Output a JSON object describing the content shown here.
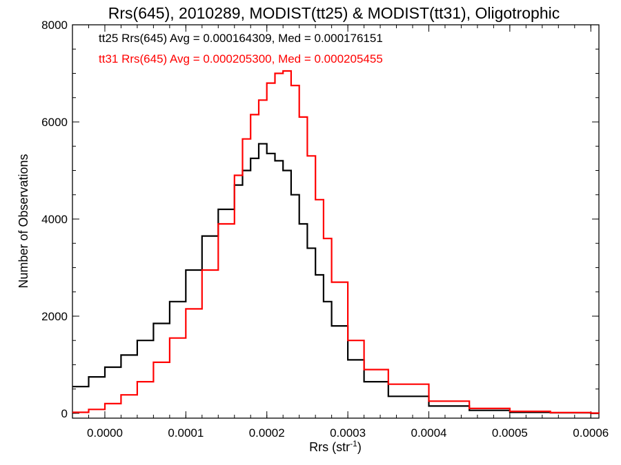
{
  "chart_data": {
    "type": "line",
    "title": "Rrs(645), 2010289, MODIST(tt25) & MODIST(tt31), Oligotrophic",
    "xlabel_main": "Rrs (str",
    "xlabel_sup": "-1",
    "xlabel_end": ")",
    "ylabel": "Number of Observations",
    "xlim": [
      -4e-05,
      0.00061
    ],
    "ylim": [
      -100,
      8000
    ],
    "x_ticks": [
      0.0,
      0.0001,
      0.0002,
      0.0003,
      0.0004,
      0.0005,
      0.0006
    ],
    "x_tick_labels": [
      "0.0000",
      "0.0001",
      "0.0002",
      "0.0003",
      "0.0004",
      "0.0005",
      "0.0006"
    ],
    "y_ticks": [
      0,
      2000,
      4000,
      6000,
      8000
    ],
    "y_tick_labels": [
      "0",
      "2000",
      "4000",
      "6000",
      "8000"
    ],
    "grid": false,
    "annotations": [
      {
        "text": "tt25 Rrs(645) Avg = 0.000164309, Med = 0.000176151",
        "color": "#000000"
      },
      {
        "text": "tt31 Rrs(645) Avg = 0.000205300, Med = 0.000205455",
        "color": "#ff0000"
      }
    ],
    "series": [
      {
        "color": "#000000",
        "x": [
          -4e-05,
          -2e-05,
          0.0,
          2e-05,
          4e-05,
          6e-05,
          8e-05,
          0.0001,
          0.00012,
          0.00014,
          0.00016,
          0.00017,
          0.00018,
          0.00019,
          0.0002,
          0.00021,
          0.00022,
          0.00023,
          0.00024,
          0.00025,
          0.00026,
          0.00027,
          0.00028,
          0.0003,
          0.00032,
          0.00035,
          0.0004,
          0.00045,
          0.0005,
          0.00055,
          0.0006,
          0.00061
        ],
        "y": [
          550,
          750,
          950,
          1200,
          1500,
          1850,
          2300,
          2950,
          3650,
          4200,
          4700,
          5000,
          5250,
          5550,
          5350,
          5200,
          5000,
          4500,
          3900,
          3400,
          2850,
          2300,
          1800,
          1100,
          650,
          350,
          150,
          60,
          20,
          10,
          0,
          0
        ]
      },
      {
        "color": "#ff0000",
        "x": [
          -4e-05,
          -2e-05,
          0.0,
          2e-05,
          4e-05,
          6e-05,
          8e-05,
          0.0001,
          0.00012,
          0.00014,
          0.00016,
          0.00017,
          0.00018,
          0.00019,
          0.0002,
          0.00021,
          0.00022,
          0.00023,
          0.00024,
          0.00025,
          0.00026,
          0.00027,
          0.00028,
          0.0003,
          0.00032,
          0.00035,
          0.0004,
          0.00045,
          0.0005,
          0.00055,
          0.0006,
          0.00061
        ],
        "y": [
          20,
          80,
          200,
          380,
          650,
          1050,
          1550,
          2150,
          2950,
          3900,
          4900,
          5650,
          6150,
          6450,
          6800,
          7000,
          7050,
          6750,
          6100,
          5300,
          4400,
          3600,
          2700,
          1500,
          900,
          600,
          250,
          100,
          40,
          15,
          5,
          0
        ]
      }
    ]
  }
}
